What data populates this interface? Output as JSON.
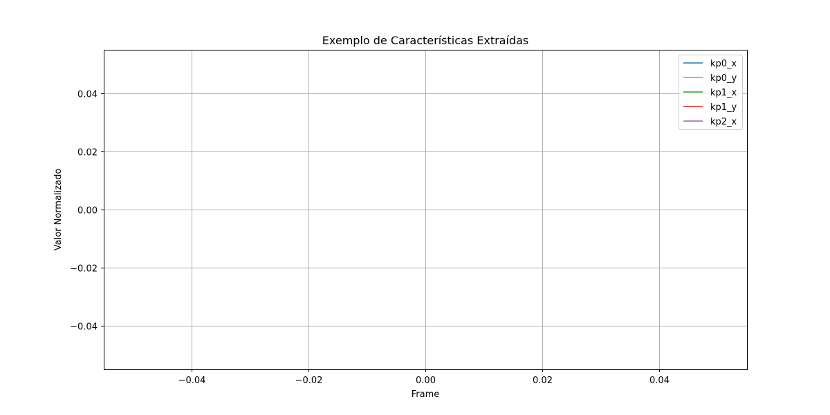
{
  "chart_data": {
    "type": "line",
    "title": "Exemplo de Características Extraídas",
    "xlabel": "Frame",
    "ylabel": "Valor Normalizado",
    "xlim": [
      -0.055,
      0.055
    ],
    "ylim": [
      -0.055,
      0.055
    ],
    "x_ticks": [
      -0.04,
      -0.02,
      0.0,
      0.02,
      0.04
    ],
    "x_tick_labels": [
      "−0.04",
      "−0.02",
      "0.00",
      "0.02",
      "0.04"
    ],
    "y_ticks": [
      0.04,
      0.02,
      0.0,
      -0.02,
      -0.04
    ],
    "y_tick_labels": [
      "0.04",
      "0.02",
      "0.00",
      "−0.02",
      "−0.04"
    ],
    "grid": true,
    "legend_position": "top-right",
    "series": [
      {
        "name": "kp0_x",
        "color": "#1f77b4",
        "x": [],
        "y": []
      },
      {
        "name": "kp0_y",
        "color": "#ff7f0e",
        "x": [],
        "y": []
      },
      {
        "name": "kp1_x",
        "color": "#2ca02c",
        "x": [],
        "y": []
      },
      {
        "name": "kp1_y",
        "color": "#d62728",
        "x": [],
        "y": []
      },
      {
        "name": "kp2_x",
        "color": "#9467bd",
        "x": [],
        "y": []
      }
    ]
  }
}
